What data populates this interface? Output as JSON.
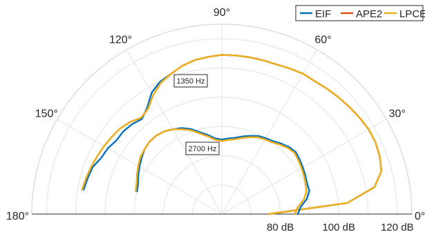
{
  "chart_data": {
    "type": "polar-half",
    "angle_unit": "degrees",
    "angle_ticks": [
      "0°",
      "30°",
      "60°",
      "90°",
      "120°",
      "150°",
      "180°"
    ],
    "radial_ticks": [
      "80 dB",
      "100 dB",
      "120 dB"
    ],
    "radial_range_db": [
      60,
      125
    ],
    "grid": true,
    "legend": {
      "placement": "top-right",
      "entries": [
        {
          "label": "EIF",
          "color": "#0072BD"
        },
        {
          "label": "APE2",
          "color": "#D95319"
        },
        {
          "label": "LPCE",
          "color": "#EDB120"
        }
      ]
    },
    "annotations": [
      "1350 Hz",
      "2700 Hz"
    ],
    "series": [
      {
        "group": "1350 Hz",
        "name": "EIF",
        "color": "#0072BD",
        "theta_deg": [
          0,
          5,
          10,
          15,
          20,
          25,
          30,
          35,
          40,
          45,
          50,
          55,
          60,
          65,
          70,
          75,
          80,
          85,
          90,
          95,
          100,
          105,
          110,
          115,
          120,
          125,
          130,
          135,
          140,
          145,
          150,
          155,
          160,
          165,
          170
        ],
        "r_db": [
          76,
          103,
          113,
          116.5,
          117.5,
          118,
          118,
          117.5,
          117,
          116.5,
          116,
          115.5,
          115.5,
          115,
          114.5,
          114.5,
          114.5,
          114.5,
          114.5,
          114,
          113.5,
          112.5,
          111,
          110,
          108,
          104.5,
          102.5,
          103.5,
          104,
          104,
          105,
          105.5,
          107,
          107.5,
          108
        ]
      },
      {
        "group": "1350 Hz",
        "name": "APE2",
        "color": "#D95319",
        "theta_deg": [
          0,
          5,
          10,
          15,
          20,
          25,
          30,
          35,
          40,
          45,
          50,
          55,
          60,
          65,
          70,
          75,
          80,
          85,
          90,
          95,
          100,
          105,
          110,
          115,
          120,
          125,
          130,
          135,
          140,
          145,
          150,
          155,
          160,
          165,
          170
        ],
        "r_db": [
          76,
          103,
          113,
          116.5,
          117.5,
          118,
          118,
          117.5,
          117,
          116.5,
          116,
          115.5,
          115.5,
          115,
          114.5,
          114.5,
          114.5,
          114.5,
          114.5,
          114,
          113.5,
          112.5,
          111,
          109.5,
          107,
          104,
          103,
          104.5,
          105.5,
          106,
          106.5,
          107,
          107.5,
          108,
          108.5
        ]
      },
      {
        "group": "1350 Hz",
        "name": "LPCE",
        "color": "#EDB120",
        "theta_deg": [
          0,
          5,
          10,
          15,
          20,
          25,
          30,
          35,
          40,
          45,
          50,
          55,
          60,
          65,
          70,
          75,
          80,
          85,
          90,
          95,
          100,
          105,
          110,
          115,
          120,
          125,
          130,
          135,
          140,
          145,
          150,
          155,
          160,
          165,
          170
        ],
        "r_db": [
          76,
          103,
          113,
          116.5,
          117.5,
          118,
          118,
          117.5,
          117,
          116.5,
          116,
          115.5,
          115.5,
          115,
          114.5,
          114.5,
          114.5,
          114.5,
          114.5,
          114,
          113.5,
          112.5,
          111,
          109.5,
          107,
          104,
          103,
          104.5,
          105.5,
          106,
          106.5,
          107,
          107.5,
          108,
          108.5
        ]
      },
      {
        "group": "2700 Hz",
        "name": "EIF",
        "color": "#0072BD",
        "theta_deg": [
          0,
          5,
          10,
          15,
          20,
          25,
          30,
          35,
          40,
          45,
          50,
          55,
          60,
          65,
          70,
          75,
          80,
          85,
          90,
          95,
          100,
          105,
          110,
          115,
          120,
          125,
          130,
          135,
          140,
          145,
          150,
          155,
          160,
          165
        ],
        "r_db": [
          86,
          87,
          89.5,
          91,
          91,
          91.5,
          92,
          92.5,
          93,
          92.5,
          91.5,
          90.5,
          90,
          89.5,
          88.5,
          87.5,
          86.5,
          86,
          85.5,
          86,
          87.5,
          89,
          91,
          92.5,
          93.5,
          94.5,
          95,
          95,
          94.5,
          93.5,
          92.5,
          91.5,
          90.5,
          90
        ]
      },
      {
        "group": "2700 Hz",
        "name": "APE2",
        "color": "#D95319",
        "theta_deg": [
          0,
          5,
          10,
          15,
          20,
          25,
          30,
          35,
          40,
          45,
          50,
          55,
          60,
          65,
          70,
          75,
          80,
          85,
          90,
          95,
          100,
          105,
          110,
          115,
          120,
          125,
          130,
          135,
          140,
          145,
          150,
          155,
          160,
          165
        ],
        "r_db": [
          85,
          86,
          88.5,
          90,
          90.5,
          91,
          91.5,
          92,
          92.5,
          92,
          91,
          90,
          89.5,
          89,
          88,
          87,
          86,
          85.5,
          85,
          85.5,
          87,
          88.5,
          90.5,
          92,
          93.5,
          94.5,
          95,
          95,
          94.5,
          94,
          93,
          92,
          91,
          90.5
        ]
      },
      {
        "group": "2700 Hz",
        "name": "LPCE",
        "color": "#EDB120",
        "theta_deg": [
          0,
          5,
          10,
          15,
          20,
          25,
          30,
          35,
          40,
          45,
          50,
          55,
          60,
          65,
          70,
          75,
          80,
          85,
          90,
          95,
          100,
          105,
          110,
          115,
          120,
          125,
          130,
          135,
          140,
          145,
          150,
          155,
          160,
          165
        ],
        "r_db": [
          85,
          86,
          88.5,
          90,
          90.5,
          91,
          91.5,
          92,
          92.5,
          92,
          91,
          90,
          89.5,
          89,
          88,
          87,
          86,
          85.5,
          85,
          85.5,
          87,
          88.5,
          90.5,
          92,
          93.5,
          94.5,
          95,
          95,
          94.5,
          94,
          93,
          92,
          91,
          90.5
        ]
      }
    ]
  }
}
